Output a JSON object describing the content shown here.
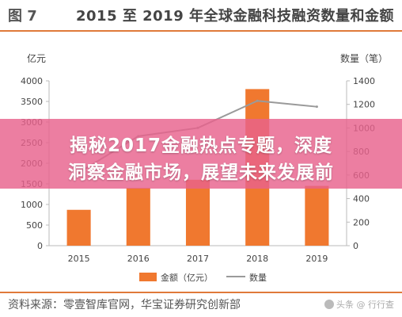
{
  "figure": {
    "number": "图 7",
    "title": "2015 至 2019 年全球金融科技融资数量和金额",
    "source": "资料来源：零壹智库官网，华宝证券研究创新部"
  },
  "overlay": {
    "line1": "揭秘2017金融热点专题，深度",
    "line2": "洞察金融市场，展望未来发展前"
  },
  "watermark": {
    "text": "头条 @ 行行查"
  },
  "chart_data": {
    "type": "bar",
    "categories": [
      "2015",
      "2016",
      "2017",
      "2018",
      "2019"
    ],
    "series": [
      {
        "name": "金额（亿元）",
        "type": "bar",
        "axis": "left",
        "values": [
          870,
          1400,
          1600,
          3800,
          1450
        ]
      },
      {
        "name": "数量",
        "type": "line",
        "axis": "right",
        "values": [
          620,
          930,
          1000,
          1230,
          1180
        ]
      }
    ],
    "left_axis": {
      "label": "亿元",
      "ylim": [
        0,
        4000
      ],
      "ticks": [
        "0",
        "500",
        "1000",
        "1500",
        "2000",
        "2500",
        "3000",
        "3500",
        "4000"
      ]
    },
    "right_axis": {
      "label": "数量（笔）",
      "ylim": [
        0,
        1400
      ],
      "ticks": [
        "0",
        "200",
        "400",
        "600",
        "800",
        "1000",
        "1200",
        "1400"
      ]
    },
    "colors": {
      "bar": "#f0782f",
      "line": "#9a9a9a"
    },
    "legend": {
      "placement": "bottom-center"
    },
    "grid": false
  }
}
